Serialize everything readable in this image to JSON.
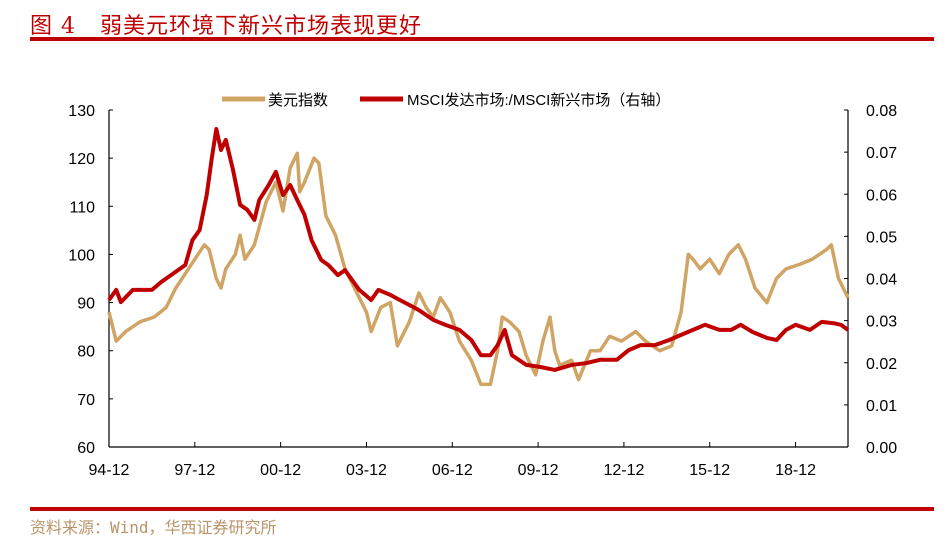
{
  "figure_title": "图 4   弱美元环境下新兴市场表现更好",
  "source": "资料来源：Wind，华西证券研究所",
  "colors": {
    "dxy": "#d0a464",
    "msci": "#c00000",
    "rule": "#c00000"
  },
  "chart_data": {
    "type": "line",
    "title": "",
    "legend_position": "top",
    "grid": false,
    "x_tick_labels": [
      "94-12",
      "97-12",
      "00-12",
      "03-12",
      "06-12",
      "09-12",
      "12-12",
      "15-12",
      "18-12"
    ],
    "x_ticks": [
      "1994-12",
      "1997-12",
      "2000-12",
      "2003-12",
      "2006-12",
      "2009-12",
      "2012-12",
      "2015-12",
      "2018-12"
    ],
    "xlim": [
      "1994-12",
      "2020-10"
    ],
    "y_left": {
      "ylim": [
        60,
        130
      ],
      "tick_labels": [
        "60",
        "70",
        "80",
        "90",
        "100",
        "110",
        "120",
        "130"
      ]
    },
    "y_right": {
      "ylim": [
        0,
        0.08
      ],
      "tick_labels": [
        "0.00",
        "0.01",
        "0.02",
        "0.03",
        "0.04",
        "0.05",
        "0.06",
        "0.07",
        "0.08"
      ]
    },
    "series": [
      {
        "name": "美元指数",
        "axis": "left",
        "points": [
          [
            "1994-12",
            88
          ],
          [
            "1995-03",
            82
          ],
          [
            "1995-07",
            84
          ],
          [
            "1996-01",
            86
          ],
          [
            "1996-07",
            87
          ],
          [
            "1996-12",
            89
          ],
          [
            "1997-04",
            93
          ],
          [
            "1997-08",
            96
          ],
          [
            "1997-12",
            99
          ],
          [
            "1998-04",
            102
          ],
          [
            "1998-06",
            101
          ],
          [
            "1998-09",
            95
          ],
          [
            "1998-11",
            93
          ],
          [
            "1999-01",
            97
          ],
          [
            "1999-05",
            100
          ],
          [
            "1999-07",
            104
          ],
          [
            "1999-09",
            99
          ],
          [
            "2000-01",
            102
          ],
          [
            "2000-06",
            111
          ],
          [
            "2000-10",
            115
          ],
          [
            "2001-01",
            109
          ],
          [
            "2001-04",
            118
          ],
          [
            "2001-07",
            121
          ],
          [
            "2001-08",
            113
          ],
          [
            "2001-10",
            115
          ],
          [
            "2002-02",
            120
          ],
          [
            "2002-04",
            119
          ],
          [
            "2002-07",
            108
          ],
          [
            "2002-11",
            104
          ],
          [
            "2003-03",
            97
          ],
          [
            "2003-07",
            93
          ],
          [
            "2003-12",
            88
          ],
          [
            "2004-02",
            84
          ],
          [
            "2004-06",
            89
          ],
          [
            "2004-10",
            90
          ],
          [
            "2005-01",
            81
          ],
          [
            "2005-06",
            86
          ],
          [
            "2005-10",
            92
          ],
          [
            "2006-01",
            89
          ],
          [
            "2006-04",
            87
          ],
          [
            "2006-07",
            91
          ],
          [
            "2006-11",
            88
          ],
          [
            "2007-03",
            82
          ],
          [
            "2007-08",
            78
          ],
          [
            "2007-12",
            73
          ],
          [
            "2008-04",
            73
          ],
          [
            "2008-07",
            80
          ],
          [
            "2008-09",
            87
          ],
          [
            "2008-12",
            86
          ],
          [
            "2009-04",
            84
          ],
          [
            "2009-07",
            79
          ],
          [
            "2009-11",
            75
          ],
          [
            "2010-02",
            82
          ],
          [
            "2010-05",
            87
          ],
          [
            "2010-07",
            80
          ],
          [
            "2010-09",
            77
          ],
          [
            "2011-02",
            78
          ],
          [
            "2011-05",
            74
          ],
          [
            "2011-10",
            80
          ],
          [
            "2012-02",
            80
          ],
          [
            "2012-06",
            83
          ],
          [
            "2012-11",
            82
          ],
          [
            "2013-05",
            84
          ],
          [
            "2013-09",
            82
          ],
          [
            "2014-03",
            80
          ],
          [
            "2014-08",
            81
          ],
          [
            "2014-12",
            88
          ],
          [
            "2015-03",
            100
          ],
          [
            "2015-05",
            99
          ],
          [
            "2015-08",
            97
          ],
          [
            "2015-12",
            99
          ],
          [
            "2016-04",
            96
          ],
          [
            "2016-08",
            100
          ],
          [
            "2016-12",
            102
          ],
          [
            "2017-03",
            99
          ],
          [
            "2017-07",
            93
          ],
          [
            "2017-12",
            90
          ],
          [
            "2018-04",
            95
          ],
          [
            "2018-08",
            97
          ],
          [
            "2019-02",
            98
          ],
          [
            "2019-07",
            99
          ],
          [
            "2020-01",
            101
          ],
          [
            "2020-03",
            102
          ],
          [
            "2020-06",
            95
          ],
          [
            "2020-10",
            91
          ]
        ]
      },
      {
        "name": "MSCI发达市场:/MSCI新兴市场（右轴）",
        "axis": "right",
        "points": [
          [
            "1994-12",
            0.0349
          ],
          [
            "1995-03",
            0.0373
          ],
          [
            "1995-05",
            0.0344
          ],
          [
            "1995-10",
            0.0373
          ],
          [
            "1996-02",
            0.0373
          ],
          [
            "1996-06",
            0.0373
          ],
          [
            "1996-10",
            0.0392
          ],
          [
            "1997-02",
            0.0408
          ],
          [
            "1997-08",
            0.0432
          ],
          [
            "1997-11",
            0.0491
          ],
          [
            "1998-02",
            0.0515
          ],
          [
            "1998-05",
            0.0598
          ],
          [
            "1998-07",
            0.0681
          ],
          [
            "1998-09",
            0.0755
          ],
          [
            "1998-11",
            0.0705
          ],
          [
            "1999-01",
            0.0729
          ],
          [
            "1999-04",
            0.0658
          ],
          [
            "1999-07",
            0.0575
          ],
          [
            "1999-10",
            0.0563
          ],
          [
            "2000-01",
            0.0539
          ],
          [
            "2000-03",
            0.0586
          ],
          [
            "2000-07",
            0.0622
          ],
          [
            "2000-10",
            0.0653
          ],
          [
            "2001-01",
            0.0598
          ],
          [
            "2001-04",
            0.0622
          ],
          [
            "2001-07",
            0.0586
          ],
          [
            "2001-10",
            0.0551
          ],
          [
            "2002-01",
            0.0491
          ],
          [
            "2002-05",
            0.0444
          ],
          [
            "2002-08",
            0.0432
          ],
          [
            "2002-12",
            0.0408
          ],
          [
            "2003-03",
            0.042
          ],
          [
            "2003-06",
            0.0396
          ],
          [
            "2003-09",
            0.0373
          ],
          [
            "2004-02",
            0.0349
          ],
          [
            "2004-05",
            0.0373
          ],
          [
            "2004-10",
            0.0361
          ],
          [
            "2005-02",
            0.0349
          ],
          [
            "2005-06",
            0.0337
          ],
          [
            "2005-10",
            0.0325
          ],
          [
            "2006-04",
            0.0302
          ],
          [
            "2006-09",
            0.029
          ],
          [
            "2007-03",
            0.0278
          ],
          [
            "2007-08",
            0.0254
          ],
          [
            "2007-12",
            0.0218
          ],
          [
            "2008-04",
            0.0218
          ],
          [
            "2008-07",
            0.0242
          ],
          [
            "2008-10",
            0.0278
          ],
          [
            "2009-01",
            0.0218
          ],
          [
            "2009-07",
            0.0195
          ],
          [
            "2010-01",
            0.019
          ],
          [
            "2010-07",
            0.0183
          ],
          [
            "2011-02",
            0.0195
          ],
          [
            "2011-08",
            0.0199
          ],
          [
            "2012-02",
            0.0207
          ],
          [
            "2012-09",
            0.0207
          ],
          [
            "2013-02",
            0.023
          ],
          [
            "2013-07",
            0.0242
          ],
          [
            "2014-01",
            0.0242
          ],
          [
            "2014-07",
            0.0254
          ],
          [
            "2014-12",
            0.0266
          ],
          [
            "2015-05",
            0.0278
          ],
          [
            "2015-10",
            0.029
          ],
          [
            "2016-04",
            0.0278
          ],
          [
            "2016-09",
            0.0278
          ],
          [
            "2017-01",
            0.029
          ],
          [
            "2017-06",
            0.0273
          ],
          [
            "2017-12",
            0.0259
          ],
          [
            "2018-04",
            0.0254
          ],
          [
            "2018-08",
            0.0278
          ],
          [
            "2018-12",
            0.029
          ],
          [
            "2019-06",
            0.0278
          ],
          [
            "2019-11",
            0.0297
          ],
          [
            "2020-04",
            0.0294
          ],
          [
            "2020-07",
            0.029
          ],
          [
            "2020-10",
            0.0278
          ]
        ]
      }
    ]
  }
}
